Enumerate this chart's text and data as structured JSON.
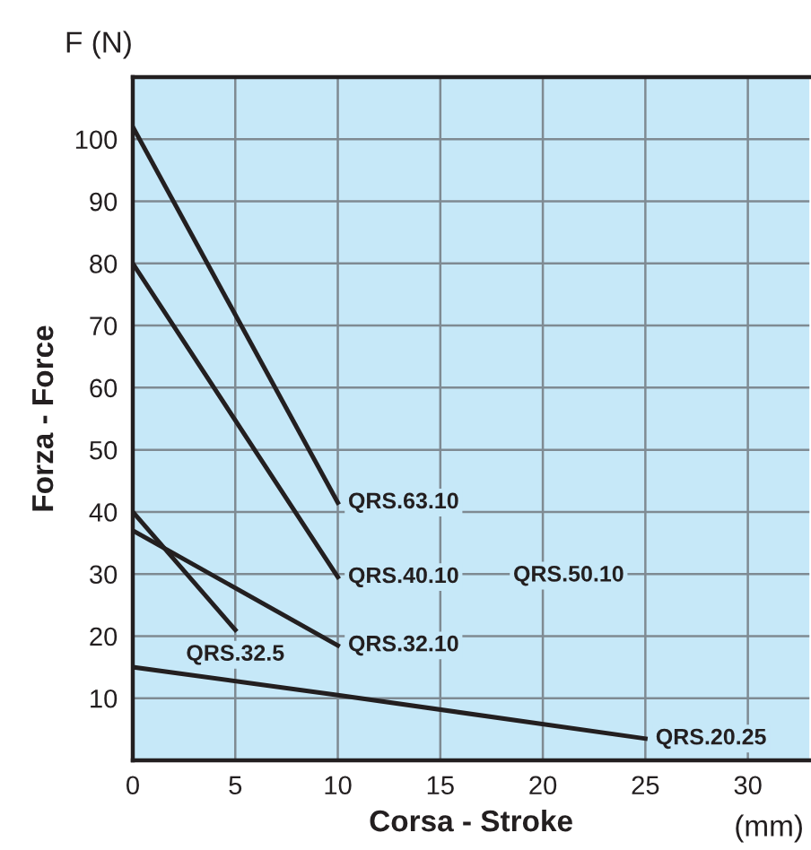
{
  "chart_data": {
    "type": "line",
    "xlabel": "Corsa - Stroke",
    "ylabel": "Forza - Force",
    "annotations": [
      "F (N)",
      "(mm)",
      "QRS.50.10"
    ],
    "series": [
      {
        "name": "QRS.63.10",
        "color": "#231f20",
        "x": [
          0,
          10
        ],
        "values": [
          102,
          41.5
        ]
      },
      {
        "name": "QRS.40.10",
        "color": "#231f20",
        "x": [
          0,
          10
        ],
        "values": [
          80,
          29.5
        ]
      },
      {
        "name": "QRS.32.10",
        "color": "#231f20",
        "x": [
          0,
          10
        ],
        "values": [
          37,
          18.5
        ]
      },
      {
        "name": "QRS.32.5",
        "color": "#231f20",
        "x": [
          0,
          5
        ],
        "values": [
          40,
          21
        ]
      },
      {
        "name": "QRS.20.25",
        "color": "#231f20",
        "x": [
          0,
          10,
          25
        ],
        "values": [
          15,
          10.5,
          3.5
        ]
      }
    ],
    "xlim": [
      0,
      33
    ],
    "ylim": [
      0,
      110
    ],
    "xticks": [
      0,
      5,
      10,
      15,
      20,
      25,
      30
    ],
    "yticks": [
      10,
      20,
      30,
      40,
      50,
      60,
      70,
      80,
      90,
      100
    ],
    "grid": true,
    "legend": false,
    "marker": "none",
    "line_style": "solid"
  }
}
